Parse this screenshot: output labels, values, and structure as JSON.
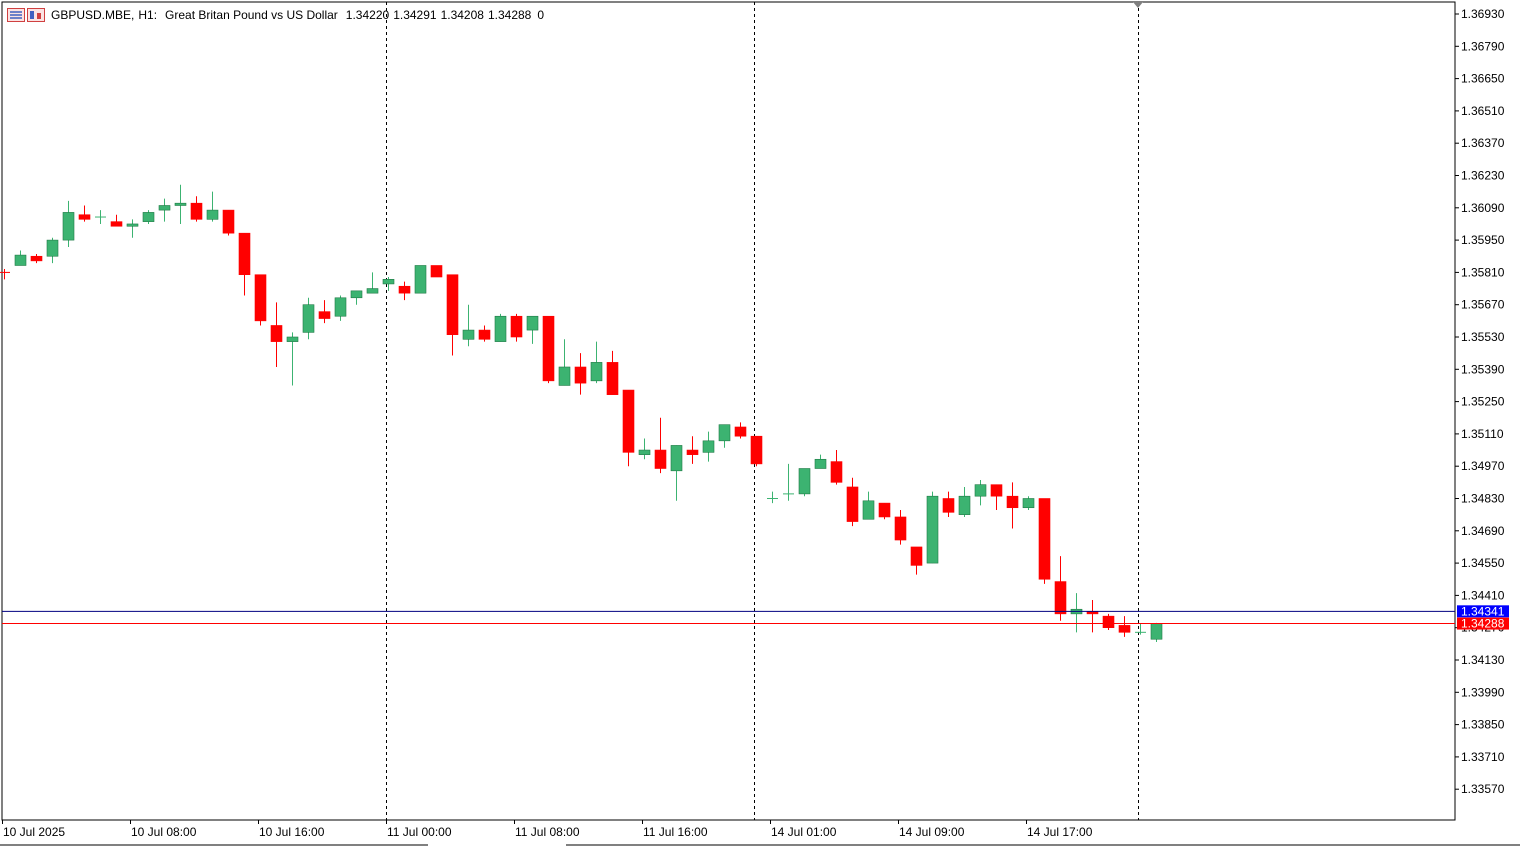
{
  "header": {
    "symbol": "GBPUSD.MBE,",
    "timeframe": "H1:",
    "description": "Great Britan Pound vs US Dollar",
    "open": "1.34220",
    "high": "1.34291",
    "low": "1.34208",
    "close": "1.34288",
    "volume": "0",
    "icons": [
      "chart-window-icon",
      "trading-panel-icon"
    ]
  },
  "colors": {
    "bull": "#3cb371",
    "bear": "#ff0000",
    "bid_line": "#ff0000",
    "ask_line": "#000080",
    "ask_label_bg": "#0000ff",
    "bid_label_bg": "#ff0000"
  },
  "chart_data": {
    "type": "candlestick",
    "symbol": "GBPUSD.MBE",
    "timeframe": "H1",
    "y_tick_labels": [
      "1.36930",
      "1.36790",
      "1.36650",
      "1.36510",
      "1.36370",
      "1.36230",
      "1.36090",
      "1.35950",
      "1.35810",
      "1.35670",
      "1.35530",
      "1.35390",
      "1.35250",
      "1.35110",
      "1.34970",
      "1.34830",
      "1.34690",
      "1.34550",
      "1.34410",
      "1.34270",
      "1.34130",
      "1.33990",
      "1.33850",
      "1.33710",
      "1.33570"
    ],
    "x_tick_labels": [
      "10 Jul 2025",
      "10 Jul 08:00",
      "10 Jul 16:00",
      "11 Jul 00:00",
      "11 Jul 08:00",
      "11 Jul 16:00",
      "14 Jul 01:00",
      "14 Jul 09:00",
      "14 Jul 17:00"
    ],
    "ylim": [
      1.335,
      1.37
    ],
    "ask_price": "1.34341",
    "bid_price": "1.34288",
    "ohlc": [
      [
        1.3581,
        1.35825,
        1.3578,
        1.35805
      ],
      [
        1.3584,
        1.35905,
        1.3584,
        1.35885
      ],
      [
        1.3588,
        1.3589,
        1.3585,
        1.3586
      ],
      [
        1.3588,
        1.3596,
        1.3585,
        1.3595
      ],
      [
        1.3595,
        1.3612,
        1.3592,
        1.3607
      ],
      [
        1.3606,
        1.361,
        1.3603,
        1.3604
      ],
      [
        1.3605,
        1.3608,
        1.3602,
        1.3605
      ],
      [
        1.3603,
        1.3606,
        1.3601,
        1.3601
      ],
      [
        1.3601,
        1.3604,
        1.3596,
        1.3602
      ],
      [
        1.3603,
        1.3608,
        1.3602,
        1.3607
      ],
      [
        1.3608,
        1.3613,
        1.3603,
        1.361
      ],
      [
        1.361,
        1.3619,
        1.3602,
        1.3611
      ],
      [
        1.3611,
        1.3614,
        1.3603,
        1.3604
      ],
      [
        1.3604,
        1.3616,
        1.3603,
        1.3608
      ],
      [
        1.3608,
        1.3608,
        1.3597,
        1.3598
      ],
      [
        1.3598,
        1.3598,
        1.3571,
        1.358
      ],
      [
        1.358,
        1.358,
        1.3558,
        1.356
      ],
      [
        1.3558,
        1.3568,
        1.354,
        1.3551
      ],
      [
        1.3551,
        1.3555,
        1.3532,
        1.3553
      ],
      [
        1.3555,
        1.357,
        1.3552,
        1.3567
      ],
      [
        1.3564,
        1.3569,
        1.3559,
        1.3561
      ],
      [
        1.3562,
        1.3571,
        1.356,
        1.357
      ],
      [
        1.357,
        1.3573,
        1.3567,
        1.3573
      ],
      [
        1.3572,
        1.3581,
        1.3572,
        1.3574
      ],
      [
        1.3576,
        1.3579,
        1.3573,
        1.3578
      ],
      [
        1.3575,
        1.3577,
        1.3569,
        1.3572
      ],
      [
        1.3572,
        1.3584,
        1.3572,
        1.3584
      ],
      [
        1.3584,
        1.3584,
        1.3579,
        1.3579
      ],
      [
        1.358,
        1.358,
        1.3545,
        1.3554
      ],
      [
        1.3552,
        1.3567,
        1.3549,
        1.3556
      ],
      [
        1.3556,
        1.3558,
        1.3551,
        1.3552
      ],
      [
        1.3551,
        1.3563,
        1.3551,
        1.3562
      ],
      [
        1.3562,
        1.3563,
        1.3551,
        1.3553
      ],
      [
        1.3556,
        1.3561,
        1.355,
        1.3562
      ],
      [
        1.3562,
        1.3562,
        1.3533,
        1.3534
      ],
      [
        1.3532,
        1.3552,
        1.3532,
        1.354
      ],
      [
        1.354,
        1.3546,
        1.3528,
        1.3533
      ],
      [
        1.3534,
        1.3551,
        1.3533,
        1.3542
      ],
      [
        1.3542,
        1.3547,
        1.3528,
        1.3528
      ],
      [
        1.353,
        1.353,
        1.3497,
        1.3503
      ],
      [
        1.3502,
        1.3509,
        1.35,
        1.3504
      ],
      [
        1.3504,
        1.3518,
        1.3494,
        1.3496
      ],
      [
        1.3495,
        1.3506,
        1.3482,
        1.3506
      ],
      [
        1.3504,
        1.351,
        1.3498,
        1.3502
      ],
      [
        1.3503,
        1.3512,
        1.3499,
        1.3508
      ],
      [
        1.3508,
        1.3515,
        1.3505,
        1.3515
      ],
      [
        1.3514,
        1.3516,
        1.3509,
        1.351
      ],
      [
        1.351,
        1.351,
        1.3497,
        1.3498
      ],
      [
        1.3483,
        1.3486,
        1.3481,
        1.3483
      ],
      [
        1.3485,
        1.3498,
        1.3482,
        1.3485
      ],
      [
        1.3485,
        1.3496,
        1.3484,
        1.3496
      ],
      [
        1.3496,
        1.3502,
        1.3496,
        1.35
      ],
      [
        1.3499,
        1.3504,
        1.3489,
        1.349
      ],
      [
        1.3488,
        1.3492,
        1.3471,
        1.3473
      ],
      [
        1.3474,
        1.3486,
        1.3474,
        1.3482
      ],
      [
        1.3481,
        1.3481,
        1.3474,
        1.3475
      ],
      [
        1.3475,
        1.3478,
        1.3463,
        1.3465
      ],
      [
        1.3462,
        1.3462,
        1.345,
        1.3454
      ],
      [
        1.3455,
        1.3486,
        1.3455,
        1.3484
      ],
      [
        1.3483,
        1.3486,
        1.3475,
        1.3477
      ],
      [
        1.3476,
        1.3488,
        1.3475,
        1.3484
      ],
      [
        1.3484,
        1.3491,
        1.348,
        1.3489
      ],
      [
        1.3489,
        1.3489,
        1.3478,
        1.3484
      ],
      [
        1.3484,
        1.349,
        1.347,
        1.3479
      ],
      [
        1.3479,
        1.3484,
        1.3478,
        1.3483
      ],
      [
        1.3483,
        1.3483,
        1.3446,
        1.3448
      ],
      [
        1.3447,
        1.3458,
        1.343,
        1.3433
      ],
      [
        1.3433,
        1.3442,
        1.3425,
        1.3435
      ],
      [
        1.3434,
        1.3439,
        1.3425,
        1.3433
      ],
      [
        1.3432,
        1.3433,
        1.3426,
        1.3427
      ],
      [
        1.3428,
        1.3432,
        1.3423,
        1.3425
      ],
      [
        1.3425,
        1.3429,
        1.3424,
        1.3425
      ],
      [
        1.3422,
        1.34291,
        1.34208,
        1.34288
      ]
    ]
  }
}
